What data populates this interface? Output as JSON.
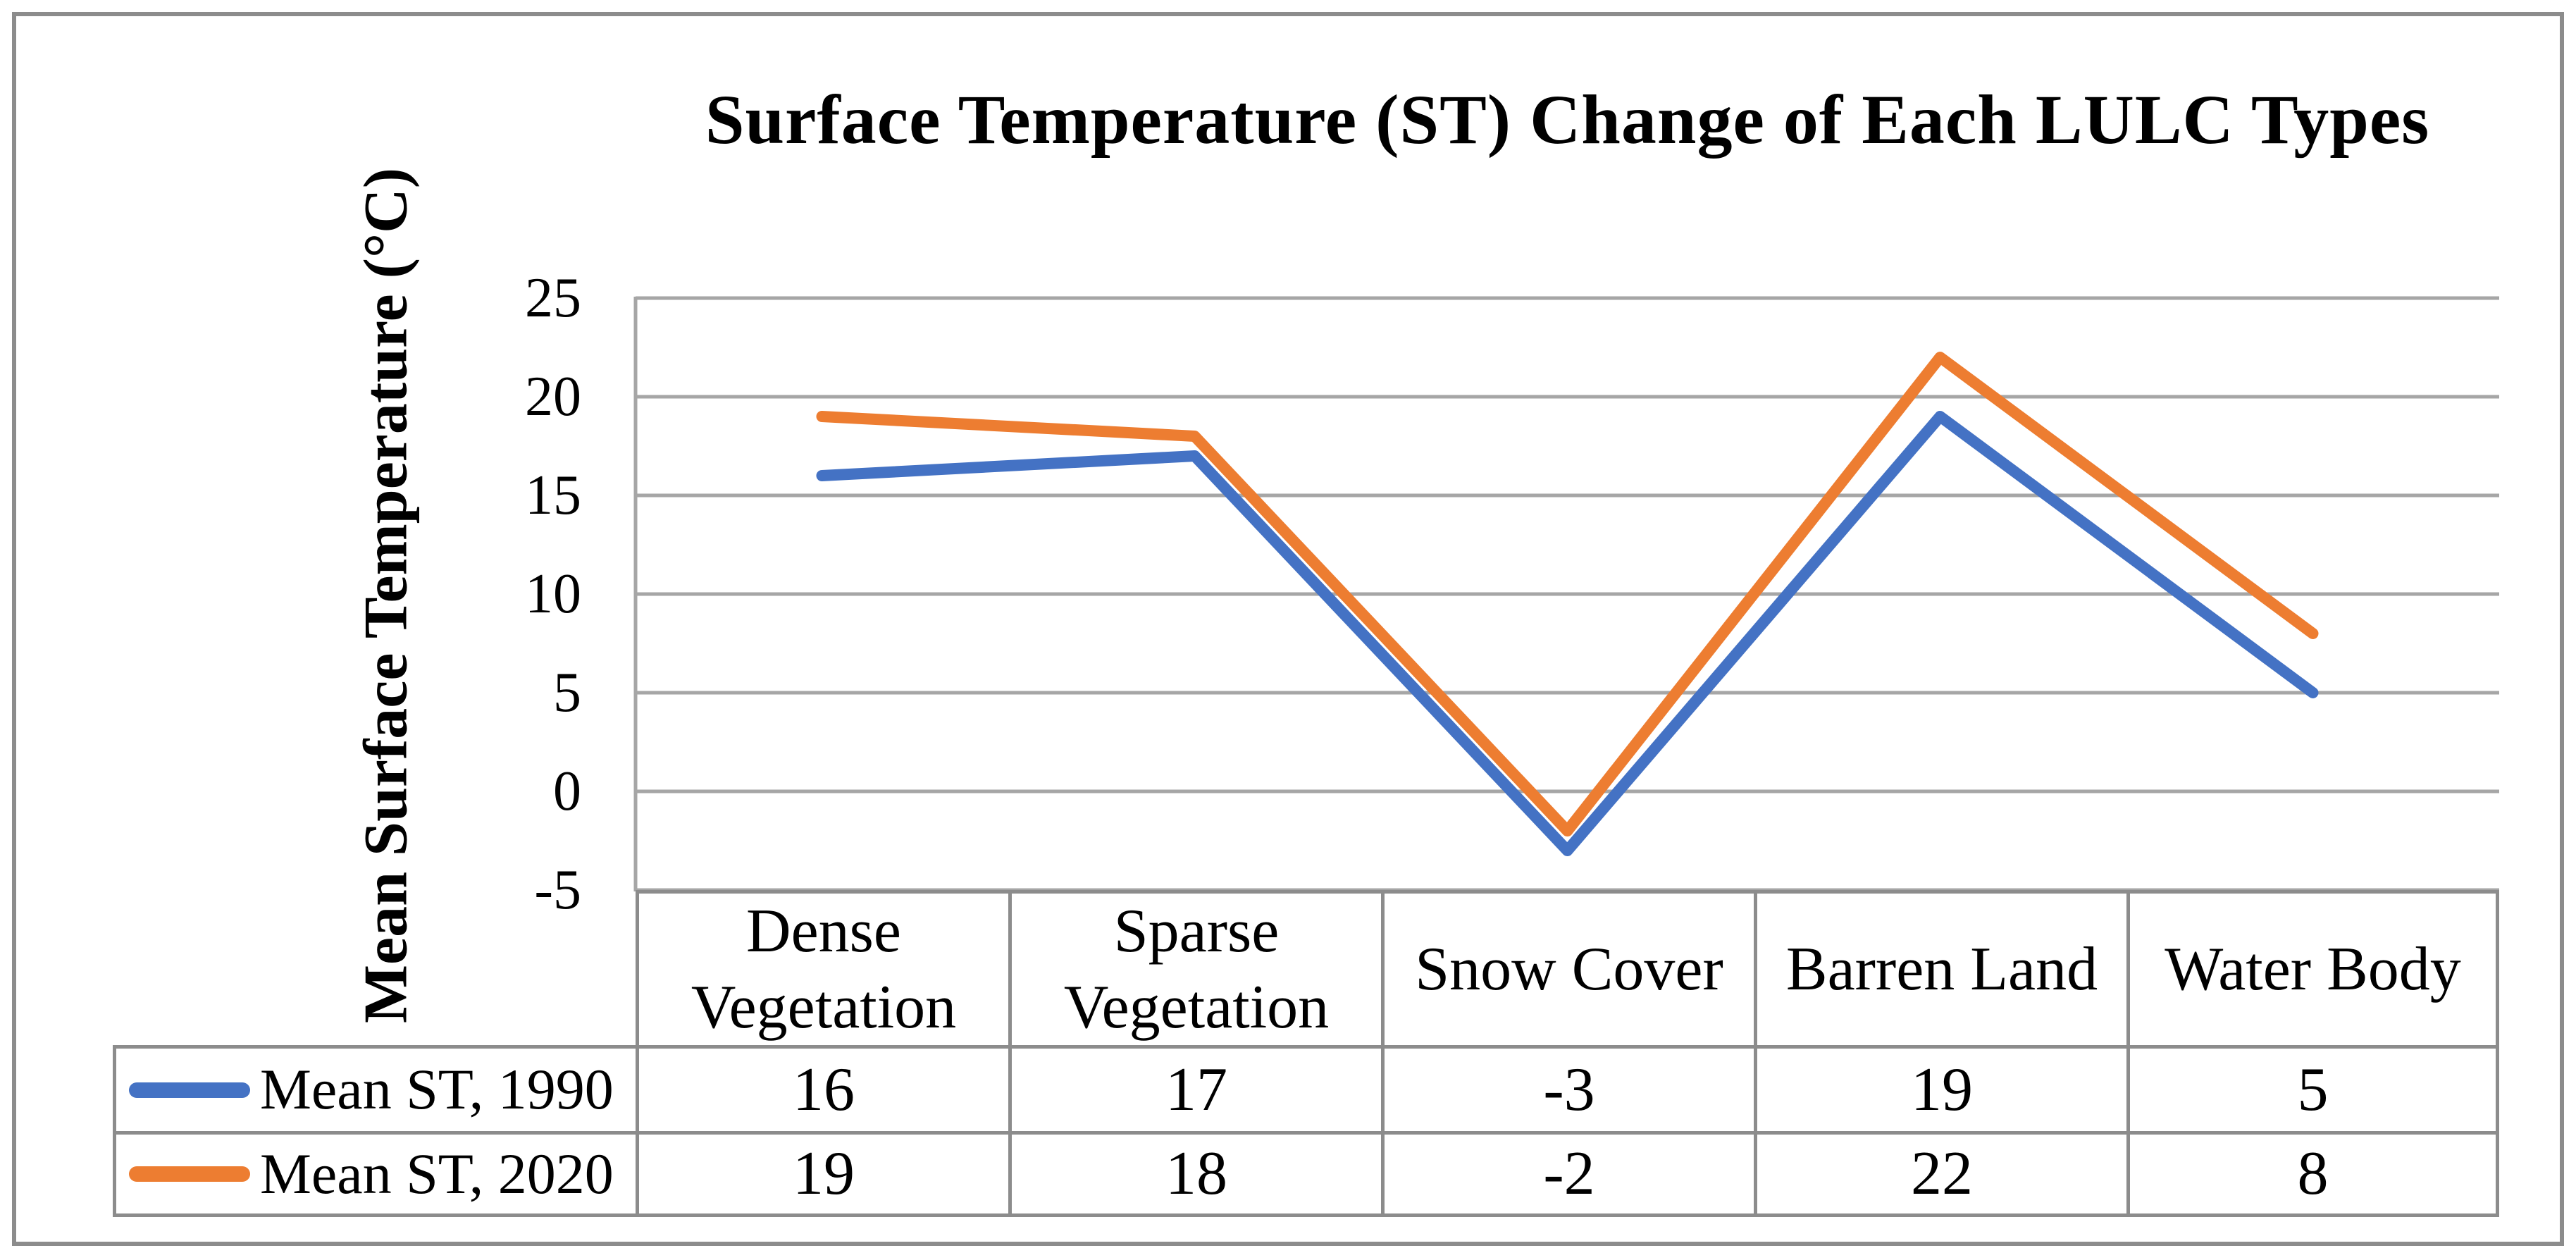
{
  "figure": {
    "border_color": "#8c8c8c",
    "background": "#ffffff"
  },
  "chart_data": {
    "type": "line",
    "title": "Surface Temperature (ST) Change of Each LULC Types",
    "xlabel": "",
    "ylabel": "Mean Surface Temperature (°C)",
    "categories": [
      "Dense Vegetation",
      "Sparse Vegetation",
      "Snow Cover",
      "Barren Land",
      "Water Body"
    ],
    "series": [
      {
        "name": "Mean ST, 1990",
        "color": "#4472C4",
        "values": [
          16,
          17,
          -3,
          19,
          5
        ]
      },
      {
        "name": "Mean ST, 2020",
        "color": "#ED7D31",
        "values": [
          19,
          18,
          -2,
          22,
          8
        ]
      }
    ],
    "yticks": [
      25,
      20,
      15,
      10,
      5,
      0,
      -5
    ],
    "ylim": [
      -5,
      25
    ],
    "ytick_step": 5,
    "grid": true,
    "gridline_color": "#a6a6a6",
    "axis_line_color": "#a6a6a6",
    "legend_position": "data-table-left"
  }
}
